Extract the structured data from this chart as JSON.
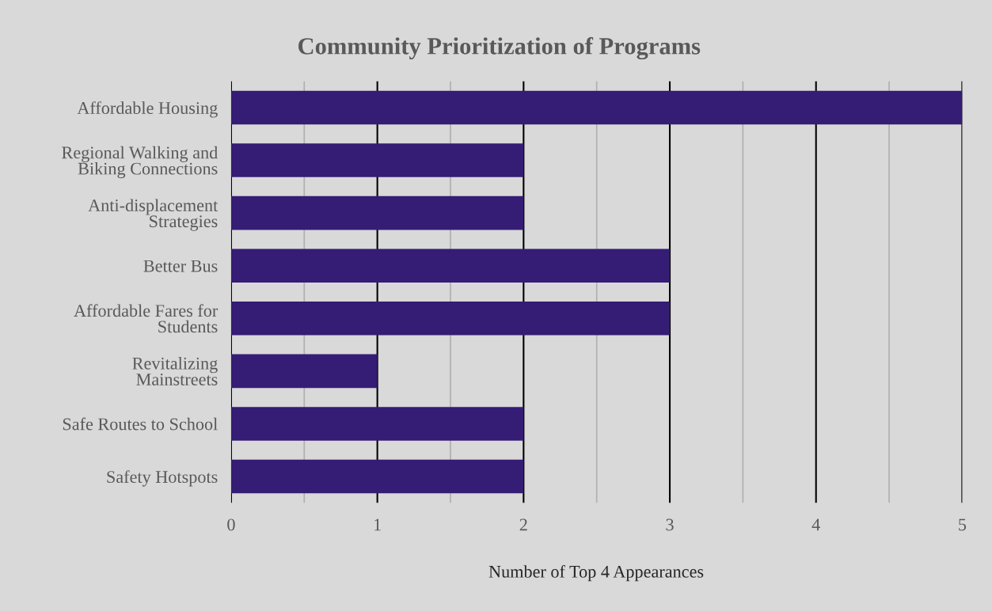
{
  "chart_data": {
    "type": "bar",
    "orientation": "horizontal",
    "title": "Community Prioritization of Programs",
    "xlabel": "Number of Top 4 Appearances",
    "categories": [
      "Affordable Housing",
      "Regional Walking and\nBiking Connections",
      "Anti-displacement\nStrategies",
      "Better Bus",
      "Affordable Fares for\nStudents",
      "Revitalizing\nMainstreets",
      "Safe Routes to School",
      "Safety Hotspots"
    ],
    "values": [
      5,
      2,
      2,
      3,
      3,
      1,
      2,
      2
    ],
    "color": "#351c75",
    "xlim": [
      0,
      5
    ],
    "xticks": [
      0,
      {
        "value": 0.5,
        "label": null
      },
      1,
      {
        "value": 1.5,
        "label": null
      },
      2,
      {
        "value": 2.5,
        "label": null
      },
      3,
      {
        "value": 3.5,
        "label": null
      },
      4,
      {
        "value": 4.5,
        "label": null
      },
      5
    ],
    "grid": "x",
    "legend": false
  }
}
